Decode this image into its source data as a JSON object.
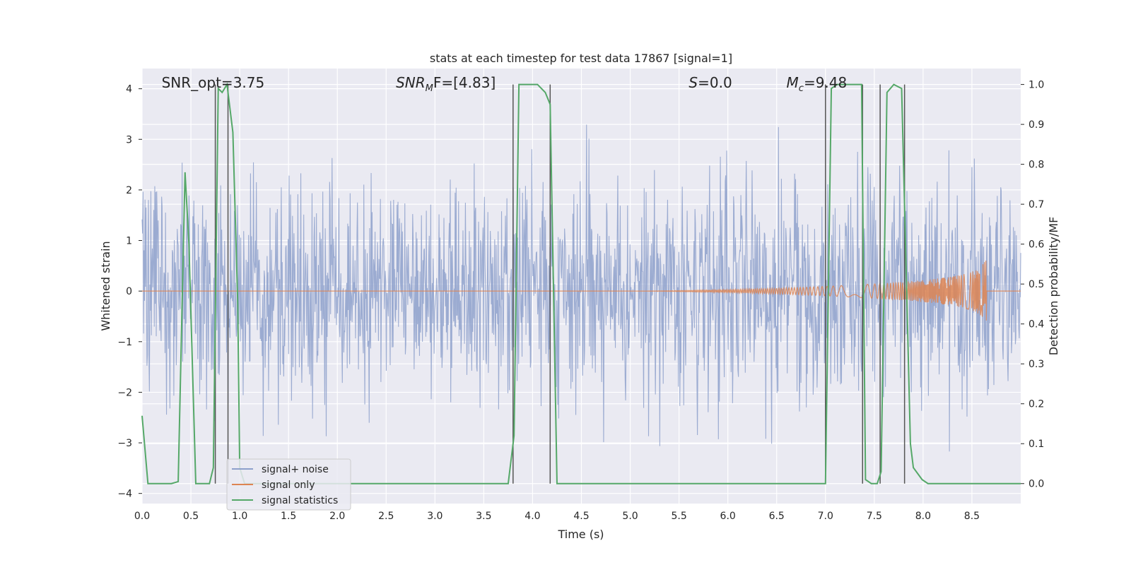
{
  "chart_data": {
    "type": "line",
    "title": "stats at each timestep for test data 17867 [signal=1]",
    "xlabel": "Time (s)",
    "ylabel_left": "Whitened strain",
    "ylabel_right": "Detection probability/MF",
    "xlim": [
      0.0,
      9.0
    ],
    "ylim_left": [
      -4.2,
      4.4
    ],
    "ylim_right": [
      -0.05,
      1.04
    ],
    "x_ticks": [
      "0.0",
      "0.5",
      "1.0",
      "1.5",
      "2.0",
      "2.5",
      "3.0",
      "3.5",
      "4.0",
      "4.5",
      "5.0",
      "5.5",
      "6.0",
      "6.5",
      "7.0",
      "7.5",
      "8.0",
      "8.5"
    ],
    "y_left_ticks": [
      "−4",
      "−3",
      "−2",
      "−1",
      "0",
      "1",
      "2",
      "3",
      "4"
    ],
    "y_right_ticks": [
      "0.0",
      "0.1",
      "0.2",
      "0.3",
      "0.4",
      "0.5",
      "0.6",
      "0.7",
      "0.8",
      "0.9",
      "1.0"
    ],
    "grid": true,
    "legend_position": "lower-left",
    "annotations": [
      {
        "text": "SNR_opt=3.75",
        "x": 0.2
      },
      {
        "text_main": "SNR",
        "text_sub": "M",
        "text_rest": "F=[4.83]",
        "x": 2.6
      },
      {
        "text_main": "S",
        "text_sub": "",
        "text_rest": "=0.0",
        "x": 5.6
      },
      {
        "text_main": "M",
        "text_sub": "c",
        "text_rest": "=9.48",
        "x": 6.6
      }
    ],
    "series": [
      {
        "name": "signal+ noise",
        "color": "#8da0cb",
        "kind": "noise",
        "std": 1.0,
        "range": [
          -3.9,
          3.4
        ]
      },
      {
        "name": "signal only",
        "color": "#dd8452",
        "kind": "chirp",
        "start": 5.0,
        "end": 8.65,
        "peak": 0.7
      },
      {
        "name": "signal statistics",
        "color": "#55a868",
        "x": [
          0.0,
          0.06,
          0.12,
          0.2,
          0.3,
          0.37,
          0.41,
          0.44,
          0.48,
          0.55,
          0.61,
          0.69,
          0.73,
          0.78,
          0.82,
          0.87,
          0.93,
          0.98,
          1.0,
          1.05,
          3.75,
          3.81,
          3.86,
          3.92,
          4.05,
          4.13,
          4.18,
          4.25,
          4.3,
          7.0,
          7.06,
          7.12,
          7.25,
          7.37,
          7.41,
          7.47,
          7.53,
          7.57,
          7.63,
          7.7,
          7.78,
          7.82,
          7.87,
          7.9,
          7.99,
          8.05,
          8.5,
          9.0
        ],
        "y": [
          0.17,
          0.0,
          0.0,
          0.0,
          0.0,
          0.005,
          0.45,
          0.78,
          0.6,
          0.0,
          0.0,
          0.0,
          0.04,
          0.99,
          0.98,
          1.0,
          0.88,
          0.45,
          0.04,
          0.0,
          0.0,
          0.12,
          1.0,
          1.0,
          1.0,
          0.98,
          0.95,
          0.0,
          0.0,
          0.0,
          0.99,
          1.0,
          1.0,
          1.0,
          0.01,
          0.0,
          0.0,
          0.03,
          0.98,
          1.0,
          0.99,
          0.6,
          0.1,
          0.04,
          0.01,
          0.0,
          0.0,
          0.0
        ]
      }
    ],
    "vertical_lines": [
      0.75,
      0.88,
      3.8,
      4.18,
      7.0,
      7.38,
      7.56,
      7.81
    ],
    "vline_color": "#555555"
  }
}
